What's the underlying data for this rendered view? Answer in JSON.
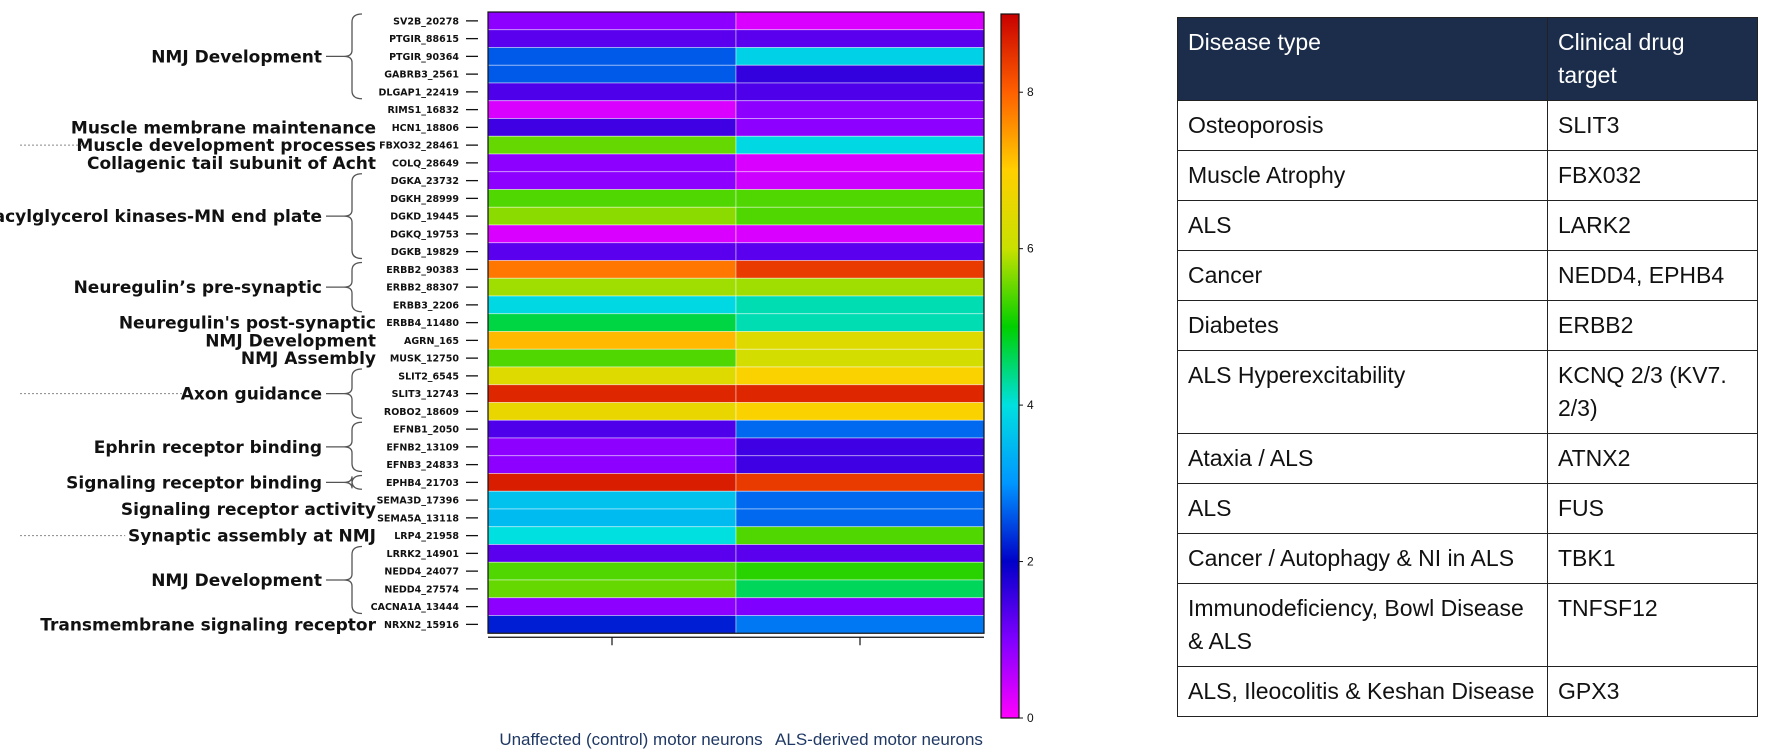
{
  "chart_data": {
    "type": "heatmap",
    "columns": [
      "Unaffected (control) motor neurons",
      "ALS-derived motor neurons"
    ],
    "colorbar": {
      "min": 0,
      "max": 9,
      "ticks": [
        "0",
        "2",
        "4",
        "6",
        "8"
      ],
      "colors": [
        "#ff00ff",
        "#8000ff",
        "#0000c8",
        "#0096ff",
        "#00e0e0",
        "#00d000",
        "#c8e000",
        "#ffd000",
        "#ff6000",
        "#c80000"
      ]
    },
    "rows": [
      {
        "gene": "SV2B_20278",
        "values": [
          0.9,
          0.3
        ]
      },
      {
        "gene": "PTGIR_88615",
        "values": [
          1.3,
          1.3
        ]
      },
      {
        "gene": "PTGIR_90364",
        "values": [
          2.6,
          3.8
        ]
      },
      {
        "gene": "GABRB3_2561",
        "values": [
          2.6,
          1.6
        ]
      },
      {
        "gene": "DLGAP1_22419",
        "values": [
          1.4,
          1.4
        ]
      },
      {
        "gene": "RIMS1_16832",
        "values": [
          0.3,
          0.9
        ]
      },
      {
        "gene": "HCN1_18806",
        "values": [
          1.5,
          0.9
        ]
      },
      {
        "gene": "FBXO32_28461",
        "values": [
          5.5,
          3.9
        ]
      },
      {
        "gene": "COLQ_28649",
        "values": [
          0.9,
          0.3
        ]
      },
      {
        "gene": "DGKA_23732",
        "values": [
          0.9,
          0.4
        ]
      },
      {
        "gene": "DGKH_28999",
        "values": [
          5.4,
          5.4
        ]
      },
      {
        "gene": "DGKD_19445",
        "values": [
          5.7,
          5.4
        ]
      },
      {
        "gene": "DGKQ_19753",
        "values": [
          0.3,
          0.3
        ]
      },
      {
        "gene": "DGKB_19829",
        "values": [
          1.3,
          1.3
        ]
      },
      {
        "gene": "ERBB2_90383",
        "values": [
          7.8,
          8.4
        ]
      },
      {
        "gene": "ERBB2_88307",
        "values": [
          5.8,
          5.8
        ]
      },
      {
        "gene": "ERBB3_2206",
        "values": [
          3.9,
          4.2
        ]
      },
      {
        "gene": "ERBB4_11480",
        "values": [
          4.7,
          4.2
        ]
      },
      {
        "gene": "AGRN_165",
        "values": [
          7.2,
          6.4
        ]
      },
      {
        "gene": "MUSK_12750",
        "values": [
          5.4,
          6.2
        ]
      },
      {
        "gene": "SLIT2_6545",
        "values": [
          6.4,
          6.9
        ]
      },
      {
        "gene": "SLIT3_12743",
        "values": [
          8.6,
          8.6
        ]
      },
      {
        "gene": "ROBO2_18609",
        "values": [
          6.6,
          6.9
        ]
      },
      {
        "gene": "EFNB1_2050",
        "values": [
          1.4,
          2.7
        ]
      },
      {
        "gene": "EFNB2_13109",
        "values": [
          0.9,
          1.5
        ]
      },
      {
        "gene": "EFNB3_24833",
        "values": [
          0.9,
          1.5
        ]
      },
      {
        "gene": "EPHB4_21703",
        "values": [
          8.7,
          8.4
        ]
      },
      {
        "gene": "SEMA3D_17396",
        "values": [
          3.6,
          2.7
        ]
      },
      {
        "gene": "SEMA5A_13118",
        "values": [
          3.5,
          2.7
        ]
      },
      {
        "gene": "LRP4_21958",
        "values": [
          4.0,
          5.4
        ]
      },
      {
        "gene": "LRRK2_14901",
        "values": [
          1.3,
          1.3
        ]
      },
      {
        "gene": "NEDD4_24077",
        "values": [
          5.4,
          5.2
        ]
      },
      {
        "gene": "NEDD4_27574",
        "values": [
          5.5,
          4.6
        ]
      },
      {
        "gene": "CACNA1A_13444",
        "values": [
          0.9,
          1.0
        ]
      },
      {
        "gene": "NRXN2_15916",
        "values": [
          2.2,
          2.8
        ]
      }
    ],
    "groups": [
      {
        "label": "NMJ Development",
        "first_row": 0,
        "last_row": 4,
        "bracket": true,
        "dotted": false
      },
      {
        "label": "Muscle membrane maintenance",
        "first_row": 6,
        "last_row": 6,
        "bracket": false,
        "dotted": false
      },
      {
        "label": "Muscle development processes",
        "first_row": 7,
        "last_row": 7,
        "bracket": false,
        "dotted": true
      },
      {
        "label": "Collagenic tail subunit of Acht",
        "first_row": 8,
        "last_row": 8,
        "bracket": false,
        "dotted": false
      },
      {
        "label": "Diacylglycerol kinases-MN end plate",
        "first_row": 9,
        "last_row": 13,
        "bracket": true,
        "dotted": false
      },
      {
        "label": "Neuregulin’s pre-synaptic",
        "first_row": 14,
        "last_row": 16,
        "bracket": true,
        "dotted": false
      },
      {
        "label": "Neuregulin's post-synaptic",
        "first_row": 17,
        "last_row": 17,
        "bracket": false,
        "dotted": false
      },
      {
        "label": "NMJ Development",
        "first_row": 18,
        "last_row": 18,
        "bracket": false,
        "dotted": false
      },
      {
        "label": "NMJ Assembly",
        "first_row": 19,
        "last_row": 19,
        "bracket": false,
        "dotted": false
      },
      {
        "label": "Axon guidance",
        "first_row": 20,
        "last_row": 22,
        "bracket": true,
        "dotted": true
      },
      {
        "label": "Ephrin receptor binding",
        "first_row": 23,
        "last_row": 25,
        "bracket": true,
        "dotted": false
      },
      {
        "label": "Signaling receptor binding",
        "first_row": 26,
        "last_row": 26,
        "bracket": true,
        "dotted": false
      },
      {
        "label": "Signaling receptor activity",
        "first_row": 27,
        "last_row": 28,
        "bracket": false,
        "dotted": false
      },
      {
        "label": "Synaptic assembly at NMJ",
        "first_row": 29,
        "last_row": 29,
        "bracket": false,
        "dotted": true
      },
      {
        "label": "NMJ Development",
        "first_row": 30,
        "last_row": 33,
        "bracket": true,
        "dotted": false
      },
      {
        "label": "Transmembrane signaling receptor",
        "first_row": 34,
        "last_row": 34,
        "bracket": false,
        "dotted": false
      }
    ]
  },
  "table": {
    "headers": [
      "Disease type",
      "Clinical drug target"
    ],
    "rows": [
      [
        "Osteoporosis",
        "SLIT3"
      ],
      [
        "Muscle Atrophy",
        "FBX032"
      ],
      [
        "ALS",
        "LARK2"
      ],
      [
        "Cancer",
        "NEDD4, EPHB4"
      ],
      [
        "Diabetes",
        "ERBB2"
      ],
      [
        "ALS Hyperexcitability",
        "KCNQ 2/3 (KV7. 2/3)"
      ],
      [
        "Ataxia / ALS",
        "ATNX2"
      ],
      [
        "ALS",
        "FUS"
      ],
      [
        "Cancer / Autophagy & NI in ALS",
        "TBK1"
      ],
      [
        "Immunodeficiency, Bowl Disease & ALS",
        "TNFSF12"
      ],
      [
        "ALS, Ileocolitis & Keshan Disease",
        "GPX3"
      ]
    ]
  }
}
